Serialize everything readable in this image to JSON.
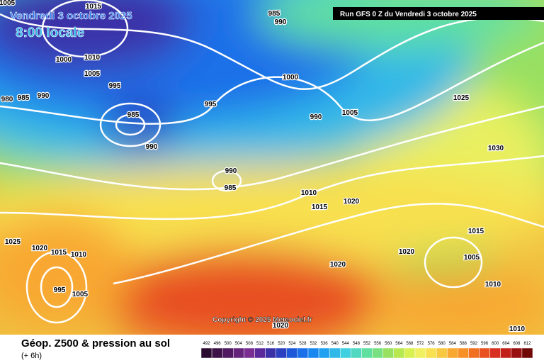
{
  "header": {
    "date": "Vendredi 3 octobre 2025",
    "time": "8:00 locale",
    "run": "Run GFS 0 Z du Vendredi 3 octobre 2025"
  },
  "copyright": "Copyright © 2025 Meteociel.fr",
  "footer": {
    "title": "Géop. Z500 & pression au sol",
    "lead": "(+ 6h)"
  },
  "legend": {
    "values": [
      492,
      496,
      500,
      504,
      508,
      512,
      516,
      520,
      524,
      528,
      532,
      536,
      540,
      544,
      548,
      552,
      556,
      560,
      564,
      568,
      572,
      576,
      580,
      584,
      588,
      592,
      596,
      600,
      604,
      608,
      612
    ],
    "colors": [
      "#2a0a2e",
      "#3d1248",
      "#521a62",
      "#66247a",
      "#7a2e92",
      "#5a2a9a",
      "#3a30a8",
      "#2a40c0",
      "#1e58d8",
      "#1a70e8",
      "#1888f0",
      "#20a0f0",
      "#30b8e8",
      "#40d0e0",
      "#50d8c0",
      "#60e0a0",
      "#78e080",
      "#98e060",
      "#b8e850",
      "#d8f050",
      "#f0f060",
      "#f8e050",
      "#f8c840",
      "#f8a830",
      "#f89028",
      "#f07020",
      "#e85020",
      "#d83020",
      "#c02018",
      "#981010",
      "#700808"
    ]
  },
  "isobars": [
    "1005",
    "1015",
    "985",
    "990",
    "1000",
    "1010",
    "1005",
    "995",
    "980",
    "985",
    "990",
    "985",
    "990",
    "995",
    "1000",
    "990",
    "1005",
    "1025",
    "1030",
    "990",
    "985",
    "1010",
    "1015",
    "1020",
    "1025",
    "1020",
    "1015",
    "1010",
    "1020",
    "1015",
    "1005",
    "1020",
    "1010",
    "995",
    "1005",
    "1020",
    "1010"
  ]
}
